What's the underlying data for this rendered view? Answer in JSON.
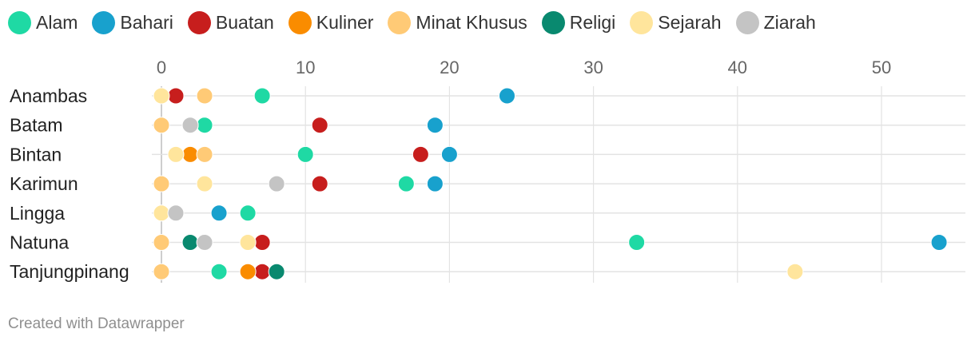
{
  "chart_data": {
    "type": "scatter",
    "legend_placement": "top-left",
    "grid": true,
    "x_ticks": [
      0,
      10,
      20,
      30,
      40,
      50
    ],
    "xlim": [
      0,
      55
    ],
    "categories": [
      "Anambas",
      "Batam",
      "Bintan",
      "Karimun",
      "Lingga",
      "Natuna",
      "Tanjungpinang"
    ],
    "series": [
      {
        "name": "Alam",
        "color": "#1fd9a4",
        "values": [
          7,
          3,
          10,
          17,
          6,
          33,
          4
        ]
      },
      {
        "name": "Bahari",
        "color": "#18a1cd",
        "values": [
          24,
          19,
          20,
          19,
          4,
          54,
          null
        ]
      },
      {
        "name": "Buatan",
        "color": "#c71e1d",
        "values": [
          1,
          11,
          18,
          11,
          null,
          7,
          7
        ]
      },
      {
        "name": "Kuliner",
        "color": "#fa8c00",
        "values": [
          null,
          null,
          2,
          null,
          null,
          null,
          6
        ]
      },
      {
        "name": "Minat Khusus",
        "color": "#ffca76",
        "values": [
          3,
          0,
          3,
          0,
          0,
          0,
          0
        ]
      },
      {
        "name": "Religi",
        "color": "#09896f",
        "values": [
          null,
          null,
          null,
          null,
          null,
          2,
          8
        ]
      },
      {
        "name": "Sejarah",
        "color": "#ffe59c",
        "values": [
          0,
          2,
          1,
          3,
          0,
          6,
          44
        ]
      },
      {
        "name": "Ziarah",
        "color": "#c4c4c4",
        "values": [
          null,
          2,
          null,
          8,
          1,
          3,
          null
        ]
      }
    ]
  },
  "footer": {
    "text": "Created with Datawrapper"
  }
}
